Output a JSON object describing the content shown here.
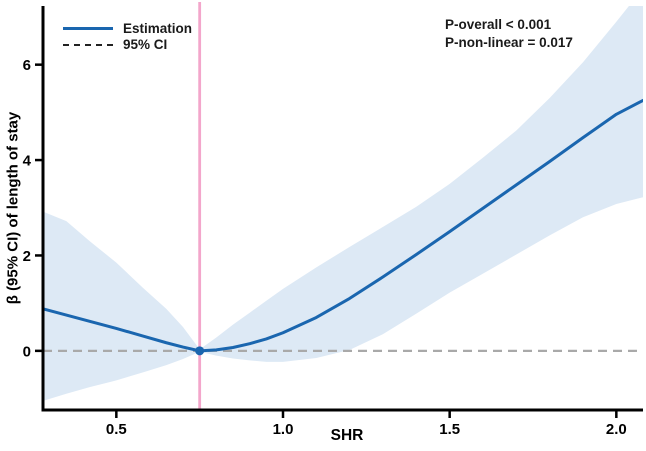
{
  "legend": {
    "items": [
      {
        "label": "Estimation",
        "style": "solid"
      },
      {
        "label": "95% CI",
        "style": "dashed"
      }
    ]
  },
  "annotations": {
    "p_overall": "P-overall < 0.001",
    "p_non_linear": "P-non-linear = 0.017"
  },
  "colors": {
    "estimation_line": "#1a66af",
    "ci_band": "#dde9f5",
    "reference_vline": "#f3a6cb",
    "zero_line": "#a9a9a9",
    "axis": "#000000",
    "text": "#1a1a1a"
  },
  "chart_data": {
    "type": "line",
    "title": "",
    "xlabel": "SHR",
    "ylabel": "β (95% CI) of length of stay",
    "xlim": [
      0.28,
      2.08
    ],
    "ylim": [
      -1.24,
      7.23
    ],
    "grid": false,
    "legend_position": "top-left",
    "x_ticks": [
      {
        "value": 0.5,
        "label": "0.5"
      },
      {
        "value": 1.0,
        "label": "1.0"
      },
      {
        "value": 1.5,
        "label": "1.5"
      },
      {
        "value": 2.0,
        "label": "2.0"
      }
    ],
    "y_ticks": [
      {
        "value": 0,
        "label": "0"
      },
      {
        "value": 2,
        "label": "2"
      },
      {
        "value": 4,
        "label": "4"
      },
      {
        "value": 6,
        "label": "6"
      }
    ],
    "reference_vline_x": 0.75,
    "zero_hline_y": 0,
    "reference_point": {
      "x": 0.75,
      "y": 0
    },
    "x": [
      0.28,
      0.35,
      0.42,
      0.5,
      0.58,
      0.65,
      0.7,
      0.75,
      0.8,
      0.85,
      0.9,
      0.95,
      1.0,
      1.1,
      1.2,
      1.3,
      1.4,
      1.5,
      1.6,
      1.7,
      1.8,
      1.9,
      2.0,
      2.08
    ],
    "series": [
      {
        "name": "Estimation",
        "values": [
          0.88,
          0.75,
          0.62,
          0.47,
          0.31,
          0.17,
          0.08,
          0.0,
          0.02,
          0.07,
          0.15,
          0.25,
          0.38,
          0.7,
          1.1,
          1.55,
          2.02,
          2.5,
          2.99,
          3.48,
          3.97,
          4.47,
          4.96,
          5.25
        ]
      },
      {
        "name": "95% CI upper",
        "values": [
          2.92,
          2.72,
          2.3,
          1.85,
          1.32,
          0.88,
          0.5,
          0.03,
          0.28,
          0.55,
          0.8,
          1.05,
          1.3,
          1.75,
          2.18,
          2.6,
          3.02,
          3.5,
          4.05,
          4.62,
          5.3,
          6.05,
          6.9,
          7.6
        ]
      },
      {
        "name": "95% CI lower",
        "values": [
          -1.05,
          -0.9,
          -0.76,
          -0.62,
          -0.45,
          -0.3,
          -0.17,
          -0.02,
          -0.1,
          -0.16,
          -0.2,
          -0.23,
          -0.23,
          -0.15,
          0.02,
          0.35,
          0.78,
          1.22,
          1.62,
          2.02,
          2.42,
          2.8,
          3.08,
          3.22
        ]
      }
    ]
  }
}
